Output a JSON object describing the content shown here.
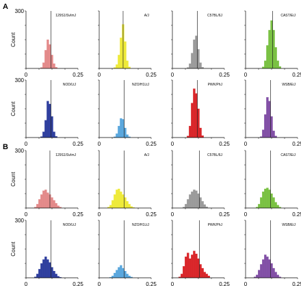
{
  "panels": {
    "A": {
      "letter": "A"
    },
    "B": {
      "letter": "B"
    }
  },
  "chart_data": [
    {
      "type": "bar",
      "panel": "A",
      "title": "129S1/SvImJ",
      "color": "#e38a8a",
      "xlim": [
        0,
        0.25
      ],
      "ylim": [
        0,
        300
      ],
      "ylabel": "Count",
      "xtick_labels": [
        "0",
        "0.25"
      ],
      "ytick_labels": [
        "300"
      ],
      "vline_x": 0.12,
      "bin_start": 0.07,
      "bin_width": 0.01,
      "values": [
        5,
        30,
        95,
        150,
        125,
        70,
        25,
        6
      ]
    },
    {
      "type": "bar",
      "panel": "A",
      "title": "A/J",
      "color": "#eeea3a",
      "xlim": [
        0,
        0.25
      ],
      "ylim": [
        0,
        300
      ],
      "ylabel": "",
      "xtick_labels": [
        "0",
        "0.25"
      ],
      "ytick_labels": [],
      "vline_x": 0.115,
      "bin_start": 0.07,
      "bin_width": 0.01,
      "values": [
        5,
        20,
        70,
        160,
        230,
        140,
        40,
        8
      ]
    },
    {
      "type": "bar",
      "panel": "A",
      "title": "C57BL/6J",
      "color": "#9b9b9b",
      "xlim": [
        0,
        0.25
      ],
      "ylim": [
        0,
        300
      ],
      "ylabel": "",
      "xtick_labels": [
        "0",
        "0.25"
      ],
      "ytick_labels": [],
      "vline_x": 0.12,
      "bin_start": 0.07,
      "bin_width": 0.01,
      "values": [
        5,
        25,
        80,
        150,
        170,
        100,
        30,
        6
      ]
    },
    {
      "type": "bar",
      "panel": "A",
      "title": "CAST/EiJ",
      "color": "#7ac143",
      "xlim": [
        0,
        0.25
      ],
      "ylim": [
        0,
        300
      ],
      "ylabel": "",
      "xtick_labels": [
        "0",
        "0.25"
      ],
      "ytick_labels": [],
      "vline_x": 0.13,
      "bin_start": 0.08,
      "bin_width": 0.01,
      "values": [
        8,
        40,
        120,
        200,
        250,
        200,
        110,
        40,
        10
      ]
    },
    {
      "type": "bar",
      "panel": "A",
      "title": "NOD/LtJ",
      "color": "#2f3f9e",
      "xlim": [
        0,
        0.25
      ],
      "ylim": [
        0,
        300
      ],
      "ylabel": "Count",
      "xtick_labels": [
        "0",
        "0.25"
      ],
      "ytick_labels": [
        "300"
      ],
      "vline_x": 0.12,
      "bin_start": 0.07,
      "bin_width": 0.01,
      "values": [
        5,
        30,
        90,
        190,
        175,
        110,
        30,
        6
      ]
    },
    {
      "type": "bar",
      "panel": "A",
      "title": "NZO/H1LtJ",
      "color": "#5aa7dd",
      "xlim": [
        0,
        0.25
      ],
      "ylim": [
        0,
        300
      ],
      "ylabel": "",
      "xtick_labels": [
        "0",
        "0.25"
      ],
      "ytick_labels": [],
      "vline_x": 0.12,
      "bin_start": 0.07,
      "bin_width": 0.01,
      "values": [
        4,
        20,
        60,
        100,
        95,
        50,
        15,
        4
      ]
    },
    {
      "type": "bar",
      "panel": "A",
      "title": "PWK/PhJ",
      "color": "#d9262a",
      "xlim": [
        0,
        0.25
      ],
      "ylim": [
        0,
        300
      ],
      "ylabel": "",
      "xtick_labels": [
        "0",
        "0.25"
      ],
      "ytick_labels": [],
      "vline_x": 0.12,
      "bin_start": 0.07,
      "bin_width": 0.01,
      "values": [
        8,
        60,
        180,
        255,
        230,
        150,
        50,
        10
      ]
    },
    {
      "type": "bar",
      "panel": "A",
      "title": "WSB/EiJ",
      "color": "#8250a6",
      "xlim": [
        0,
        0.25
      ],
      "ylim": [
        0,
        300
      ],
      "ylabel": "",
      "xtick_labels": [
        "0",
        "0.25"
      ],
      "ytick_labels": [],
      "vline_x": 0.12,
      "bin_start": 0.07,
      "bin_width": 0.01,
      "values": [
        5,
        40,
        120,
        210,
        190,
        110,
        35,
        8
      ]
    },
    {
      "type": "bar",
      "panel": "B",
      "title": "129S1/SvImJ",
      "color": "#e38a8a",
      "xlim": [
        0,
        0.25
      ],
      "ylim": [
        0,
        300
      ],
      "ylabel": "Count",
      "xtick_labels": [
        "0",
        "0.25"
      ],
      "ytick_labels": [
        "300"
      ],
      "vline_x": 0.115,
      "bin_start": 0.04,
      "bin_width": 0.01,
      "values": [
        5,
        20,
        45,
        70,
        90,
        95,
        80,
        70,
        55,
        40,
        25,
        12,
        5
      ]
    },
    {
      "type": "bar",
      "panel": "B",
      "title": "A/J",
      "color": "#eeea3a",
      "xlim": [
        0,
        0.25
      ],
      "ylim": [
        0,
        300
      ],
      "ylabel": "",
      "xtick_labels": [
        "0",
        "0.25"
      ],
      "ytick_labels": [],
      "vline_x": 0.12,
      "bin_start": 0.04,
      "bin_width": 0.01,
      "values": [
        5,
        15,
        40,
        70,
        95,
        100,
        85,
        70,
        55,
        35,
        20,
        8,
        3
      ]
    },
    {
      "type": "bar",
      "panel": "B",
      "title": "C57BL/6J",
      "color": "#9b9b9b",
      "xlim": [
        0,
        0.25
      ],
      "ylim": [
        0,
        300
      ],
      "ylabel": "",
      "xtick_labels": [
        "0",
        "0.25"
      ],
      "ytick_labels": [],
      "vline_x": 0.13,
      "bin_start": 0.05,
      "bin_width": 0.01,
      "values": [
        5,
        20,
        45,
        70,
        85,
        95,
        90,
        75,
        55,
        35,
        18,
        6
      ]
    },
    {
      "type": "bar",
      "panel": "B",
      "title": "CAST/EiJ",
      "color": "#7ac143",
      "xlim": [
        0,
        0.25
      ],
      "ylim": [
        0,
        300
      ],
      "ylabel": "",
      "xtick_labels": [
        "0",
        "0.25"
      ],
      "ytick_labels": [],
      "vline_x": 0.12,
      "bin_start": 0.05,
      "bin_width": 0.01,
      "values": [
        5,
        20,
        55,
        85,
        100,
        105,
        95,
        75,
        55,
        30,
        15,
        5
      ]
    },
    {
      "type": "bar",
      "panel": "B",
      "title": "NOD/LtJ",
      "color": "#2f3f9e",
      "xlim": [
        0,
        0.25
      ],
      "ylim": [
        0,
        300
      ],
      "ylabel": "Count",
      "xtick_labels": [
        "0",
        "0.25"
      ],
      "ytick_labels": [
        "300"
      ],
      "vline_x": 0.12,
      "bin_start": 0.04,
      "bin_width": 0.01,
      "values": [
        5,
        20,
        45,
        75,
        95,
        110,
        95,
        80,
        55,
        35,
        20,
        8,
        3
      ]
    },
    {
      "type": "bar",
      "panel": "B",
      "title": "NZO/H1LtJ",
      "color": "#5aa7dd",
      "xlim": [
        0,
        0.25
      ],
      "ylim": [
        0,
        300
      ],
      "ylabel": "",
      "xtick_labels": [
        "0",
        "0.25"
      ],
      "ytick_labels": [],
      "vline_x": 0.12,
      "bin_start": 0.05,
      "bin_width": 0.01,
      "values": [
        3,
        10,
        25,
        40,
        55,
        65,
        50,
        35,
        20,
        10,
        4
      ]
    },
    {
      "type": "bar",
      "panel": "B",
      "title": "PWK/PhJ",
      "color": "#d9262a",
      "xlim": [
        0,
        0.25
      ],
      "ylim": [
        0,
        300
      ],
      "ylabel": "",
      "xtick_labels": [
        "0",
        "0.25"
      ],
      "ytick_labels": [],
      "vline_x": 0.13,
      "bin_start": 0.03,
      "bin_width": 0.01,
      "values": [
        5,
        20,
        60,
        110,
        130,
        100,
        120,
        140,
        125,
        100,
        70,
        50,
        30,
        20,
        10
      ]
    },
    {
      "type": "bar",
      "panel": "B",
      "title": "WSB/EiJ",
      "color": "#8250a6",
      "xlim": [
        0,
        0.25
      ],
      "ylim": [
        0,
        300
      ],
      "ylabel": "",
      "xtick_labels": [
        "0",
        "0.25"
      ],
      "ytick_labels": [],
      "vline_x": 0.12,
      "bin_start": 0.04,
      "bin_width": 0.01,
      "values": [
        5,
        15,
        40,
        70,
        95,
        120,
        110,
        95,
        75,
        50,
        30,
        15,
        5
      ]
    }
  ]
}
